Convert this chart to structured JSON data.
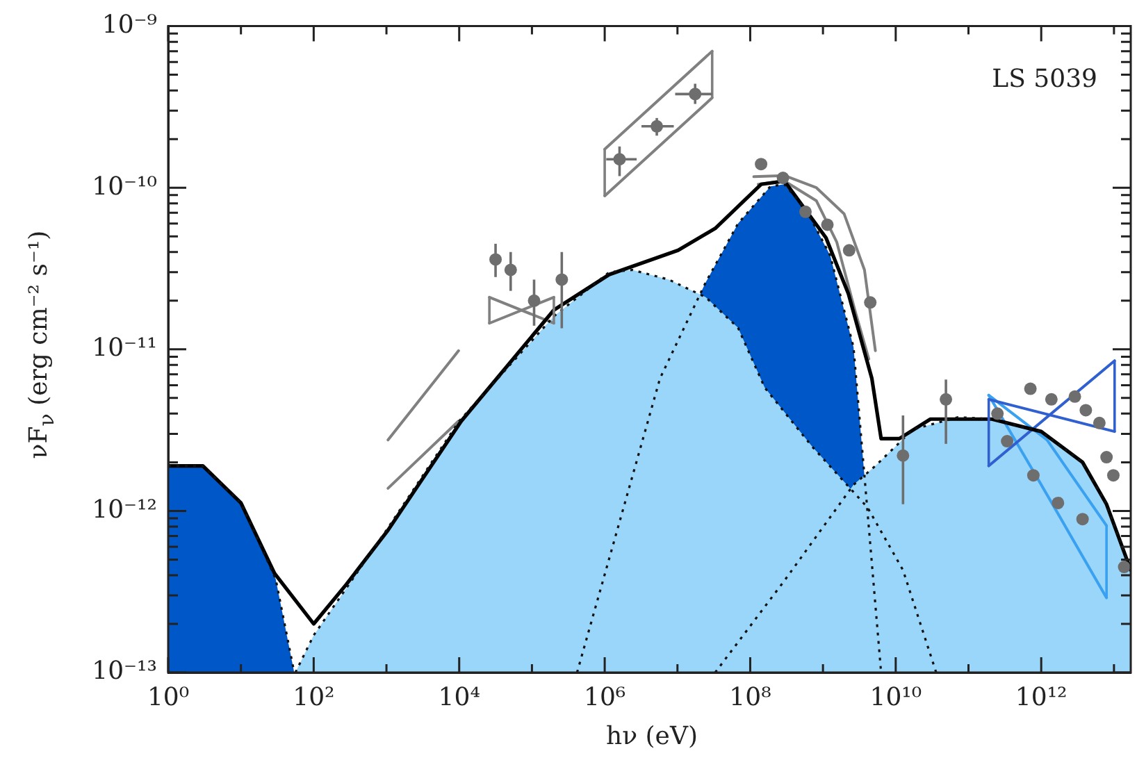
{
  "chart_data": {
    "type": "line",
    "xlabel": "hν (eV)",
    "ylabel": "νF$_{ν}$ (erg cm⁻² s⁻¹)",
    "log": "xy",
    "grid": false,
    "legend": false,
    "annotations": [
      "LS 5039"
    ],
    "xlim": [
      1,
      17000000000000.0
    ],
    "ylim": [
      1e-13,
      1e-09
    ],
    "xticks": [
      {
        "value": 1,
        "label": "10⁰"
      },
      {
        "value": 10,
        "label": null
      },
      {
        "value": 100,
        "label": "10²"
      },
      {
        "value": 1000,
        "label": null
      },
      {
        "value": 10000,
        "label": "10⁴"
      },
      {
        "value": 100000,
        "label": null
      },
      {
        "value": 1000000,
        "label": "10⁶"
      },
      {
        "value": 10000000,
        "label": null
      },
      {
        "value": 100000000,
        "label": "10⁸"
      },
      {
        "value": 1000000000,
        "label": null
      },
      {
        "value": 10000000000,
        "label": "10¹⁰"
      },
      {
        "value": 100000000000,
        "label": null
      },
      {
        "value": 1000000000000,
        "label": "10¹²"
      },
      {
        "value": 10000000000000,
        "label": null
      }
    ],
    "yticks": [
      {
        "value": 1e-13,
        "label": "10⁻¹³"
      },
      {
        "value": 2e-13,
        "label": null
      },
      {
        "value": 3e-13,
        "label": null
      },
      {
        "value": 4e-13,
        "label": null
      },
      {
        "value": 5e-13,
        "label": null
      },
      {
        "value": 6e-13,
        "label": null
      },
      {
        "value": 7e-13,
        "label": null
      },
      {
        "value": 8e-13,
        "label": null
      },
      {
        "value": 9e-13,
        "label": null
      },
      {
        "value": 1e-12,
        "label": "10⁻¹²"
      },
      {
        "value": 2e-12,
        "label": null
      },
      {
        "value": 3e-12,
        "label": null
      },
      {
        "value": 4e-12,
        "label": null
      },
      {
        "value": 5e-12,
        "label": null
      },
      {
        "value": 6e-12,
        "label": null
      },
      {
        "value": 7e-12,
        "label": null
      },
      {
        "value": 8e-12,
        "label": null
      },
      {
        "value": 9e-12,
        "label": null
      },
      {
        "value": 1e-11,
        "label": "10⁻¹¹"
      },
      {
        "value": 2e-11,
        "label": null
      },
      {
        "value": 3e-11,
        "label": null
      },
      {
        "value": 4e-11,
        "label": null
      },
      {
        "value": 5e-11,
        "label": null
      },
      {
        "value": 6e-11,
        "label": null
      },
      {
        "value": 7e-11,
        "label": null
      },
      {
        "value": 8e-11,
        "label": null
      },
      {
        "value": 9e-11,
        "label": null
      },
      {
        "value": 1e-10,
        "label": "10⁻¹⁰"
      },
      {
        "value": 2e-10,
        "label": null
      },
      {
        "value": 3e-10,
        "label": null
      },
      {
        "value": 4e-10,
        "label": null
      },
      {
        "value": 5e-10,
        "label": null
      },
      {
        "value": 6e-10,
        "label": null
      },
      {
        "value": 7e-10,
        "label": null
      },
      {
        "value": 8e-10,
        "label": null
      },
      {
        "value": 9e-10,
        "label": null
      },
      {
        "value": 1e-09,
        "label": "10⁻⁹"
      }
    ],
    "series": [
      {
        "type": "area",
        "color": "#9ad6fa",
        "line_style": "dotted",
        "x": [
          56,
          100,
          1000,
          10000,
          200000,
          1150000,
          2400000,
          7600000,
          24500000,
          68000000,
          158000000,
          710000000,
          4100000000,
          12600000000,
          36000000000
        ],
        "values": [
          1e-13,
          1.7e-13,
          7.6e-13,
          3.6e-12,
          1.6e-11,
          3e-11,
          3.1e-11,
          2.7e-11,
          2.1e-11,
          1.36e-11,
          5.8e-12,
          2.5e-12,
          1.05e-12,
          4.3e-13,
          1e-13
        ]
      },
      {
        "type": "area",
        "color": "#9ad6fa",
        "line_style": "dotted",
        "x": [
          33000000,
          295000000,
          2630000000,
          5250000000,
          17400000000,
          72000000000,
          210000000000,
          1000000000000,
          3700000000000,
          7900000000000,
          17000000000000
        ],
        "values": [
          1e-13,
          3.7e-13,
          1.45e-12,
          1.9e-12,
          3.2e-12,
          3.8e-12,
          3.7e-12,
          3.1e-12,
          2e-12,
          1.1e-12,
          4.3e-13
        ]
      },
      {
        "type": "area",
        "color": "#0057c8",
        "line_style": "dotted",
        "x": [
          417000,
          5750000,
          24500000,
          68000000,
          190000000,
          295000000,
          590000000,
          1260000000,
          2630000000,
          4100000000,
          6300000000
        ],
        "values": [
          1e-13,
          6.6e-12,
          2.6e-11,
          6e-11,
          1.02e-10,
          1.05e-10,
          7.3e-11,
          3.8e-11,
          1.03e-11,
          9.8e-13,
          1e-13
        ]
      },
      {
        "type": "area",
        "color": "#0057c8",
        "line_style": "dotted",
        "x": [
          1,
          3,
          10,
          30,
          54
        ],
        "values": [
          1.9e-12,
          1.9e-12,
          1.12e-12,
          3.8e-13,
          1e-13
        ]
      },
      {
        "color": "#000000",
        "line_style": "solid",
        "x": [
          1,
          3,
          10,
          29,
          100,
          280,
          1050,
          10700,
          200000,
          1150000,
          10200000,
          33000000,
          141000000,
          295000000,
          1100000000,
          2240000000,
          4700000000,
          6300000000,
          11200000000,
          30000000000,
          210000000000,
          1000000000000,
          3700000000000,
          7900000000000,
          17000000000000
        ],
        "values": [
          1.9e-12,
          1.9e-12,
          1.12e-12,
          4.1e-13,
          2e-13,
          3.5e-13,
          7.6e-13,
          3.6e-12,
          1.75e-11,
          2.9e-11,
          4.1e-11,
          5.6e-11,
          1.05e-10,
          1.1e-10,
          4.9e-11,
          2.2e-11,
          6.6e-12,
          2.8e-12,
          2.8e-12,
          3.7e-12,
          3.7e-12,
          3.1e-12,
          2e-12,
          1.1e-12,
          4.3e-13
        ]
      },
      {
        "color": "#808080",
        "line_style": "solid",
        "x": [
          26000,
          200000
        ],
        "values": [
          2.1e-11,
          1.45e-11
        ],
        "errors": [
          [
            1.45e-11,
            2.1e-11
          ],
          [
            1.45e-11,
            2.1e-11
          ]
        ]
      },
      {
        "color": "#808080",
        "line_style": "solid",
        "x": [
          26000,
          200000
        ],
        "values": [
          1.45e-11,
          2.1e-11
        ]
      },
      {
        "color": "#808080",
        "line_style": "solid",
        "x": [
          1000000,
          30000000
        ],
        "values": [
          1.73e-10,
          7e-10
        ],
        "errors": [
          [
            8.9e-11,
            1.73e-10
          ],
          [
            3.6e-10,
            7e-10
          ]
        ]
      },
      {
        "color": "#808080",
        "line_style": "solid",
        "x": [
          1000000,
          30000000
        ],
        "values": [
          8.9e-11,
          3.6e-10
        ]
      },
      {
        "color": "#808080",
        "line_style": "solid",
        "x": [
          1050,
          9800
        ],
        "values": [
          2.75e-12,
          9.8e-12
        ]
      },
      {
        "color": "#808080",
        "line_style": "solid",
        "x": [
          1050,
          9800
        ],
        "values": [
          1.38e-12,
          3.6e-12
        ]
      },
      {
        "color": "#808080",
        "line_style": "solid",
        "x": [
          112000000,
          295000000,
          813000000,
          1950000000,
          3720000000,
          5250000000
        ],
        "values": [
          1.17e-10,
          1.19e-10,
          1e-10,
          6.9e-11,
          3.1e-11,
          9.8e-12
        ]
      },
      {
        "color": "#808080",
        "line_style": "solid",
        "x": [
          129000000,
          295000000,
          813000000,
          1550000000,
          2750000000,
          4270000000
        ],
        "values": [
          1.05e-10,
          1.1e-10,
          8.3e-11,
          4.6e-11,
          1.74e-11,
          8.7e-12
        ]
      },
      {
        "color": "#3060d0",
        "line_style": "solid",
        "x": [
          190000000000,
          10200000000000
        ],
        "values": [
          4.9e-12,
          3.1e-12
        ],
        "errors": [
          [
            1.9e-12,
            4.9e-12
          ],
          [
            3.1e-12,
            8.5e-12
          ]
        ]
      },
      {
        "color": "#3060d0",
        "line_style": "solid",
        "x": [
          190000000000,
          10200000000000
        ],
        "values": [
          1.9e-12,
          8.5e-12
        ]
      },
      {
        "color": "#3aa0f0",
        "line_style": "solid",
        "x": [
          190000000000,
          1200000000000,
          7900000000000
        ],
        "values": [
          5.2e-12,
          2.75e-12,
          8.1e-13
        ],
        "errors": [
          null,
          null,
          [
            2.9e-13,
            8.1e-13
          ]
        ]
      },
      {
        "color": "#3aa0f0",
        "line_style": "solid",
        "x": [
          190000000000,
          960000000000,
          7900000000000
        ],
        "values": [
          5.2e-12,
          1.5e-12,
          2.9e-13
        ]
      },
      {
        "type": "scatter",
        "color": "#6e6e6e",
        "marker": "circle",
        "x": [
          31600,
          51000,
          107000,
          257000
        ],
        "values": [
          3.6e-11,
          3.1e-11,
          2e-11,
          2.7e-11
        ],
        "errors": [
          [
            2.8e-11,
            4.5e-11
          ],
          [
            2.3e-11,
            4e-11
          ],
          [
            1.4e-11,
            2.7e-11
          ],
          [
            1.35e-11,
            4e-11
          ]
        ]
      },
      {
        "type": "scatter",
        "color": "#6e6e6e",
        "marker": "circle",
        "x": [
          1600000,
          5200000,
          17500000
        ],
        "values": [
          1.5e-10,
          2.4e-10,
          3.8e-10
        ],
        "errors": [
          [
            1.18e-10,
            1.8e-10
          ],
          [
            2.1e-10,
            2.7e-10
          ],
          [
            3.3e-10,
            4.4e-10
          ]
        ],
        "xerrors": [
          [
            1050000,
            2750000
          ],
          [
            3200000,
            8900000
          ],
          [
            9300000,
            30000000
          ]
        ]
      },
      {
        "type": "scatter",
        "color": "#6e6e6e",
        "marker": "circle",
        "x": [
          141000000,
          282000000,
          575000000,
          1150000000,
          2290000000,
          4470000000
        ],
        "values": [
          1.4e-10,
          1.15e-10,
          7.1e-11,
          5.9e-11,
          4.1e-11,
          1.95e-11
        ]
      },
      {
        "type": "scatter",
        "color": "#6e6e6e",
        "marker": "circle",
        "x": [
          12600000000,
          49000000000
        ],
        "values": [
          2.2e-12,
          4.9e-12
        ],
        "errors": [
          [
            1.1e-12,
            3.9e-12
          ],
          [
            2.6e-12,
            6.5e-12
          ]
        ]
      },
      {
        "type": "scatter",
        "color": "#6e6e6e",
        "marker": "circle",
        "x": [
          250000000000,
          340000000000,
          710000000000,
          780000000000,
          1380000000000,
          1700000000000,
          2900000000000,
          3700000000000,
          4100000000000,
          6300000000000,
          7900000000000,
          9800000000000,
          13800000000000
        ],
        "values": [
          4e-12,
          2.7e-12,
          5.7e-12,
          1.66e-12,
          4.9e-12,
          1.12e-12,
          5.1e-12,
          8.9e-13,
          4.2e-12,
          3.5e-12,
          2.15e-12,
          1.66e-12,
          4.5e-13
        ]
      }
    ]
  }
}
